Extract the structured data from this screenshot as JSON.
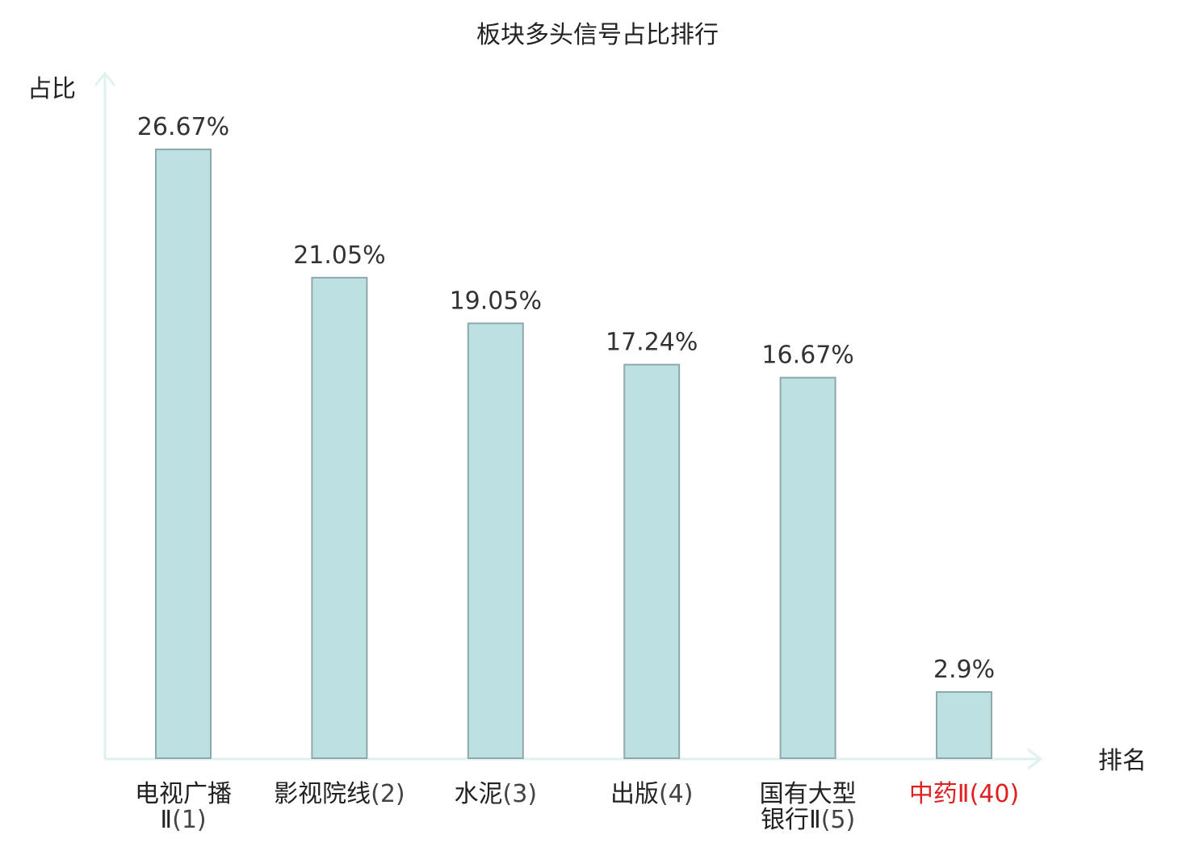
{
  "chart_data": {
    "type": "bar",
    "title": "板块多头信号占比排行",
    "ylabel": "占比",
    "xlabel": "排名",
    "ylim": [
      0,
      30
    ],
    "grid": false,
    "categories": [
      {
        "name_lines": [
          "电视广播",
          "Ⅱ"
        ],
        "rank": "(1)",
        "highlight": false
      },
      {
        "name_lines": [
          "影视院线"
        ],
        "rank": "(2)",
        "highlight": false
      },
      {
        "name_lines": [
          "水泥"
        ],
        "rank": "(3)",
        "highlight": false
      },
      {
        "name_lines": [
          "出版"
        ],
        "rank": "(4)",
        "highlight": false
      },
      {
        "name_lines": [
          "国有大型",
          "银行Ⅱ"
        ],
        "rank": "(5)",
        "highlight": false
      },
      {
        "name_lines": [
          "中药Ⅱ"
        ],
        "rank": "(40)",
        "highlight": true
      }
    ],
    "values": [
      26.67,
      21.05,
      19.05,
      17.24,
      16.67,
      2.9
    ],
    "value_labels": [
      "26.67%",
      "21.05%",
      "19.05%",
      "17.24%",
      "16.67%",
      "2.9%"
    ]
  },
  "colors": {
    "bar_fill": "#bde0e2",
    "bar_stroke": "#8fa9ab",
    "axis": "#dff2f0",
    "text": "#222222",
    "value_text": "#333333",
    "highlight": "#e02020"
  }
}
